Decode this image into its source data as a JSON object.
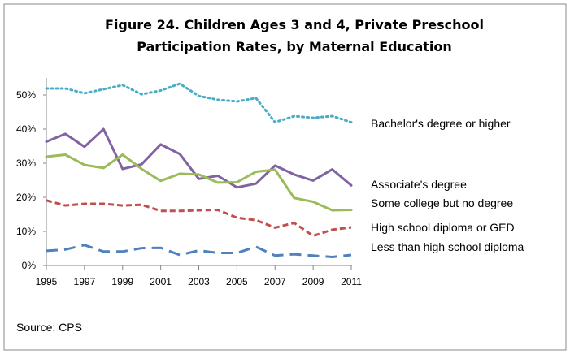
{
  "chart_data": {
    "type": "line",
    "title": [
      "Figure 24. Children Ages 3 and 4, Private Preschool",
      "Participation Rates, by Maternal Education"
    ],
    "source": "Source: CPS",
    "x": [
      1995,
      1996,
      1997,
      1998,
      1999,
      2000,
      2001,
      2002,
      2003,
      2004,
      2005,
      2006,
      2007,
      2008,
      2009,
      2010,
      2011
    ],
    "x_tick_labels": [
      "1995",
      "1997",
      "1999",
      "2001",
      "2003",
      "2005",
      "2007",
      "2009",
      "2011"
    ],
    "y_tick_labels": [
      "0%",
      "10%",
      "20%",
      "30%",
      "40%",
      "50%"
    ],
    "ylim": [
      0,
      55
    ],
    "xlim": [
      1995,
      2011
    ],
    "grid": false,
    "legend": "inline-right",
    "series": [
      {
        "name": "Bachelor's degree or higher",
        "color": "#4BACC6",
        "style": "dotted",
        "values": [
          51.9,
          51.9,
          50.5,
          51.7,
          52.9,
          50.2,
          51.3,
          53.3,
          49.7,
          48.6,
          48.1,
          49.1,
          42.0,
          43.8,
          43.3,
          43.8,
          42.0
        ]
      },
      {
        "name": "Associate's degree",
        "color": "#8064A2",
        "style": "solid",
        "values": [
          36.3,
          38.6,
          34.8,
          40.0,
          28.3,
          29.7,
          35.5,
          32.7,
          25.4,
          26.3,
          22.9,
          24.0,
          29.3,
          26.7,
          24.9,
          28.2,
          23.5
        ]
      },
      {
        "name": "Some college but no degree",
        "color": "#9BBB59",
        "style": "solid",
        "values": [
          31.9,
          32.5,
          29.5,
          28.6,
          32.5,
          28.3,
          24.8,
          26.9,
          26.7,
          24.3,
          24.4,
          27.5,
          28.1,
          19.8,
          18.7,
          16.2,
          16.3
        ]
      },
      {
        "name": "High school diploma or GED",
        "color": "#C0504D",
        "style": "dashed",
        "values": [
          19.1,
          17.6,
          18.1,
          18.1,
          17.6,
          17.8,
          16.0,
          16.0,
          16.2,
          16.3,
          14.0,
          13.3,
          11.1,
          12.5,
          8.7,
          10.5,
          11.2
        ]
      },
      {
        "name": "Less than high school diploma",
        "color": "#4F81BD",
        "style": "longdash",
        "values": [
          4.3,
          4.7,
          6.0,
          4.1,
          4.1,
          5.1,
          5.2,
          3.1,
          4.4,
          3.7,
          3.7,
          5.5,
          2.9,
          3.3,
          2.9,
          2.5,
          3.1
        ]
      }
    ]
  }
}
